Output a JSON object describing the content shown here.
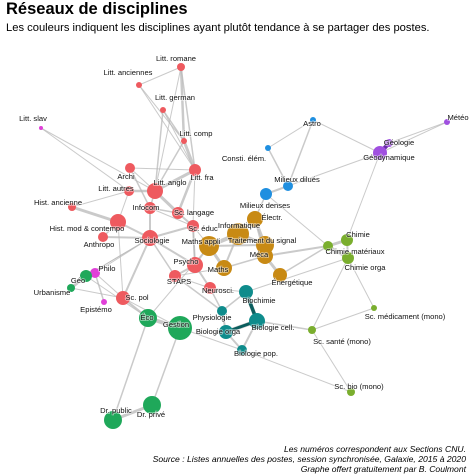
{
  "title": "Réseaux de disciplines",
  "subtitle": "Les couleurs indiquent les disciplines ayant plutôt tendance à se partager des postes.",
  "caption": [
    "Les numéros correspondent aux Sections CNU.",
    "Source : Listes annuelles des postes, session synchronisée, Galaxie, 2015 à 2020",
    "Graphe offert gratuitement par B. Coulmont"
  ],
  "colors": {
    "red": "#EE5A5F",
    "orange": "#C88A14",
    "green": "#1FA85A",
    "olive": "#7AAE2E",
    "blue": "#1F8FE0",
    "magenta": "#E040D8",
    "purple": "#A050E0",
    "teal": "#0F8C8C",
    "edge": "#B8B8B8"
  },
  "nodes": [
    {
      "id": "litt-romane",
      "label": "Litt. romane",
      "color": "red"
    },
    {
      "id": "litt-anciennes",
      "label": "Litt. anciennes",
      "color": "red"
    },
    {
      "id": "litt-german",
      "label": "Litt. german",
      "color": "red"
    },
    {
      "id": "litt-slav",
      "label": "Litt. slav",
      "color": "magenta"
    },
    {
      "id": "litt-comp",
      "label": "Litt. comp",
      "color": "red"
    },
    {
      "id": "archi",
      "label": "Archi",
      "color": "red"
    },
    {
      "id": "litt-fra",
      "label": "Litt. fra",
      "color": "red"
    },
    {
      "id": "litt-autres",
      "label": "Litt. autres",
      "color": "red"
    },
    {
      "id": "litt-anglo",
      "label": "Litt. anglo",
      "color": "red"
    },
    {
      "id": "hist-ancienne",
      "label": "Hist. ancienne",
      "color": "red"
    },
    {
      "id": "infocom",
      "label": "Infocom",
      "color": "red"
    },
    {
      "id": "sc-langage",
      "label": "Sc. langage",
      "color": "red"
    },
    {
      "id": "sc-educ",
      "label": "Sc. éduc",
      "color": "red"
    },
    {
      "id": "hist-mod",
      "label": "Hist. mod & contempo",
      "color": "red"
    },
    {
      "id": "anthropo",
      "label": "Anthropo",
      "color": "red"
    },
    {
      "id": "sociologie",
      "label": "Sociologie",
      "color": "red"
    },
    {
      "id": "psycho",
      "label": "Psycho",
      "color": "red"
    },
    {
      "id": "staps",
      "label": "STAPS",
      "color": "red"
    },
    {
      "id": "neurosci",
      "label": "Neurosci.",
      "color": "red"
    },
    {
      "id": "sc-pol",
      "label": "Sc. pol",
      "color": "red"
    },
    {
      "id": "philo",
      "label": "Philo",
      "color": "magenta"
    },
    {
      "id": "episteme",
      "label": "Epistémo",
      "color": "magenta"
    },
    {
      "id": "geo",
      "label": "Géo",
      "color": "green"
    },
    {
      "id": "urbanisme",
      "label": "Urbanisme",
      "color": "green"
    },
    {
      "id": "eco",
      "label": "Éco",
      "color": "green"
    },
    {
      "id": "gestion",
      "label": "Gestion",
      "color": "green"
    },
    {
      "id": "dr-public",
      "label": "Dr. public",
      "color": "green"
    },
    {
      "id": "dr-prive",
      "label": "Dr. privé",
      "color": "green"
    },
    {
      "id": "maths-appl",
      "label": "Maths appli",
      "color": "orange"
    },
    {
      "id": "informatique",
      "label": "Informatique",
      "color": "orange"
    },
    {
      "id": "traitement-signal",
      "label": "Traitement du signal",
      "color": "orange"
    },
    {
      "id": "electr",
      "label": "Électr.",
      "color": "orange"
    },
    {
      "id": "maths",
      "label": "Maths",
      "color": "orange"
    },
    {
      "id": "meca",
      "label": "Méca",
      "color": "orange"
    },
    {
      "id": "energetique",
      "label": "Énergétique",
      "color": "orange"
    },
    {
      "id": "astro",
      "label": "Astro",
      "color": "blue"
    },
    {
      "id": "consti-elem",
      "label": "Consti. élém.",
      "color": "blue"
    },
    {
      "id": "milieux-dilues",
      "label": "Milieux dilués",
      "color": "blue"
    },
    {
      "id": "milieux-denses",
      "label": "Milieux denses",
      "color": "blue"
    },
    {
      "id": "geologie",
      "label": "Géologie",
      "color": "purple"
    },
    {
      "id": "geodynamique",
      "label": "Géodynamique",
      "color": "purple"
    },
    {
      "id": "meteo",
      "label": "Météo",
      "color": "purple"
    },
    {
      "id": "chimie",
      "label": "Chimie",
      "color": "olive"
    },
    {
      "id": "chimie-materiaux",
      "label": "Chimie matériaux",
      "color": "olive"
    },
    {
      "id": "chimie-orga",
      "label": "Chimie orga",
      "color": "olive"
    },
    {
      "id": "sc-medicament",
      "label": "Sc. médicament (mono)",
      "color": "olive"
    },
    {
      "id": "sc-sante",
      "label": "Sc. santé (mono)",
      "color": "olive"
    },
    {
      "id": "sc-bio",
      "label": "Sc. bio (mono)",
      "color": "olive"
    },
    {
      "id": "biochimie",
      "label": "Biochimie",
      "color": "teal"
    },
    {
      "id": "physiologie",
      "label": "Physiologie",
      "color": "teal"
    },
    {
      "id": "biologie-orga",
      "label": "Biologie orga",
      "color": "teal"
    },
    {
      "id": "biologie-cell",
      "label": "Biologie cell.",
      "color": "teal"
    },
    {
      "id": "biologie-pop",
      "label": "Biologie pop.",
      "color": "teal"
    }
  ]
}
